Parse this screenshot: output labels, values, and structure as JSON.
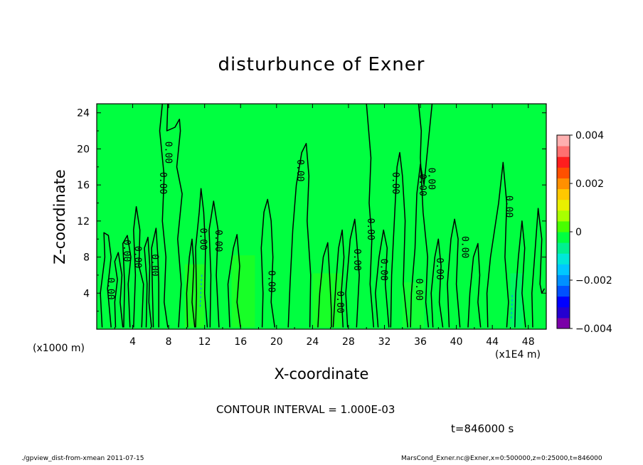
{
  "chart_data": {
    "type": "heatmap",
    "title": "disturbunce of Exner",
    "xlabel": "X-coordinate",
    "ylabel": "Z-coordinate",
    "x_unit_label": "(x1000 m)",
    "x_scale_label": "(x1E4 m)",
    "xlim": [
      0,
      50
    ],
    "ylim": [
      0,
      25
    ],
    "x_ticks": [
      4,
      8,
      12,
      16,
      20,
      24,
      28,
      32,
      36,
      40,
      44,
      48
    ],
    "y_ticks": [
      4,
      8,
      12,
      16,
      20,
      24
    ],
    "colorbar": {
      "range": [
        -0.004,
        0.004
      ],
      "tick_labels": [
        "0.004",
        "0.002",
        "0",
        "−0.002",
        "−0.004"
      ],
      "tick_values": [
        0.004,
        0.002,
        0,
        -0.002,
        -0.004
      ],
      "colors": [
        "#7a00a8",
        "#2400d0",
        "#0000ff",
        "#0050ff",
        "#0090ff",
        "#00c8ff",
        "#00e8d8",
        "#00f090",
        "#00ff40",
        "#48ff00",
        "#a8ff00",
        "#e8f000",
        "#ffc800",
        "#ff9000",
        "#ff5000",
        "#ff1e1e",
        "#ff7070",
        "#ffb0b0"
      ]
    },
    "background_value": 0,
    "contour_interval": "CONTOUR INTERVAL = 1.000E-03",
    "contour_labels": [
      {
        "x": 1.5,
        "y": 4.5,
        "text": "0.00"
      },
      {
        "x": 3.3,
        "y": 8.7,
        "text": "0.00"
      },
      {
        "x": 4.5,
        "y": 8.0,
        "text": "0.00"
      },
      {
        "x": 6.4,
        "y": 7.1,
        "text": "0.00"
      },
      {
        "x": 7.3,
        "y": 16.2,
        "text": "0.00"
      },
      {
        "x": 7.9,
        "y": 19.6,
        "text": "0.00"
      },
      {
        "x": 11.8,
        "y": 10.0,
        "text": "0.00"
      },
      {
        "x": 13.5,
        "y": 9.8,
        "text": "0.00"
      },
      {
        "x": 19.4,
        "y": 5.3,
        "text": "0.00"
      },
      {
        "x": 22.6,
        "y": 17.6,
        "text": "0.00"
      },
      {
        "x": 27.0,
        "y": 3.0,
        "text": "0.00"
      },
      {
        "x": 28.9,
        "y": 7.7,
        "text": "0.00"
      },
      {
        "x": 30.4,
        "y": 11.1,
        "text": "0.00"
      },
      {
        "x": 31.9,
        "y": 6.6,
        "text": "0.00"
      },
      {
        "x": 33.2,
        "y": 16.2,
        "text": "0.00"
      },
      {
        "x": 35.8,
        "y": 4.4,
        "text": "0.00"
      },
      {
        "x": 36.2,
        "y": 16.0,
        "text": "0.00"
      },
      {
        "x": 37.2,
        "y": 16.7,
        "text": "0.00"
      },
      {
        "x": 38.1,
        "y": 6.7,
        "text": "0.00"
      },
      {
        "x": 40.9,
        "y": 9.1,
        "text": "0.00"
      },
      {
        "x": 45.8,
        "y": 13.6,
        "text": "0.00"
      }
    ],
    "contour_lines": [
      {
        "style": "solid",
        "points": [
          [
            0.6,
            0.2
          ],
          [
            0.4,
            4
          ],
          [
            0.9,
            8
          ],
          [
            0.8,
            10.7
          ],
          [
            1.3,
            10.4
          ],
          [
            1.6,
            8
          ],
          [
            1.2,
            4.5
          ],
          [
            1.6,
            0.2
          ]
        ]
      },
      {
        "style": "solid",
        "points": [
          [
            2.1,
            0.2
          ],
          [
            2.0,
            3
          ],
          [
            2.3,
            5.5
          ],
          [
            2.0,
            7.5
          ],
          [
            2.4,
            8.5
          ],
          [
            2.8,
            6
          ],
          [
            2.6,
            3
          ],
          [
            2.9,
            0.2
          ]
        ]
      },
      {
        "style": "solid",
        "points": [
          [
            3.0,
            0.2
          ],
          [
            3.1,
            5
          ],
          [
            2.9,
            9.5
          ],
          [
            3.4,
            10.4
          ],
          [
            3.8,
            8
          ],
          [
            3.5,
            5
          ],
          [
            3.7,
            0.2
          ]
        ]
      },
      {
        "style": "solid",
        "points": [
          [
            4.1,
            0.2
          ],
          [
            4.3,
            6
          ],
          [
            4.1,
            11
          ],
          [
            4.4,
            13.6
          ],
          [
            4.8,
            11
          ],
          [
            4.7,
            7
          ],
          [
            5.2,
            5
          ],
          [
            5.0,
            0.2
          ]
        ]
      },
      {
        "style": "solid",
        "points": [
          [
            5.5,
            0.2
          ],
          [
            5.6,
            5
          ],
          [
            5.3,
            9
          ],
          [
            5.7,
            10.2
          ],
          [
            5.9,
            7
          ],
          [
            5.8,
            3
          ],
          [
            6.1,
            0.2
          ]
        ]
      },
      {
        "style": "solid",
        "points": [
          [
            6.3,
            0.2
          ],
          [
            6.2,
            4
          ],
          [
            6.1,
            9
          ],
          [
            6.6,
            11.2
          ],
          [
            6.8,
            8
          ],
          [
            6.9,
            5
          ],
          [
            6.9,
            0.2
          ]
        ]
      },
      {
        "style": "solid",
        "points": [
          [
            7.3,
            25
          ],
          [
            7.0,
            22
          ],
          [
            7.5,
            17
          ],
          [
            7.3,
            12
          ],
          [
            7.7,
            8
          ],
          [
            7.5,
            3
          ],
          [
            7.9,
            0.2
          ]
        ]
      },
      {
        "style": "solid",
        "points": [
          [
            7.9,
            25
          ],
          [
            7.8,
            22
          ],
          [
            8.7,
            22.4
          ],
          [
            9.2,
            23.3
          ],
          [
            9.3,
            22
          ],
          [
            8.9,
            18
          ],
          [
            9.5,
            15
          ],
          [
            9.0,
            10
          ],
          [
            9.4,
            5
          ],
          [
            9.1,
            0.2
          ]
        ]
      },
      {
        "style": "solid",
        "points": [
          [
            10.1,
            0.2
          ],
          [
            10.0,
            4
          ],
          [
            10.3,
            8
          ],
          [
            10.6,
            10
          ],
          [
            10.8,
            7
          ],
          [
            10.6,
            3
          ],
          [
            10.9,
            0.2
          ]
        ]
      },
      {
        "style": "solid",
        "points": [
          [
            11.0,
            0.2
          ],
          [
            11.1,
            4
          ],
          [
            11.0,
            9
          ],
          [
            11.4,
            13
          ],
          [
            11.6,
            15.6
          ],
          [
            11.9,
            13
          ],
          [
            12.1,
            9
          ],
          [
            12.0,
            4
          ],
          [
            12.3,
            0.2
          ]
        ]
      },
      {
        "style": "solid",
        "points": [
          [
            12.6,
            0.2
          ],
          [
            12.7,
            6
          ],
          [
            12.5,
            11
          ],
          [
            13.0,
            14.2
          ],
          [
            13.5,
            11
          ],
          [
            13.3,
            6
          ],
          [
            13.6,
            0.2
          ]
        ]
      },
      {
        "style": "solid",
        "points": [
          [
            14.8,
            0.2
          ],
          [
            14.6,
            5
          ],
          [
            15.2,
            9
          ],
          [
            15.6,
            10.5
          ],
          [
            15.9,
            7
          ],
          [
            15.6,
            3
          ],
          [
            16.0,
            0.2
          ]
        ]
      },
      {
        "style": "solid",
        "points": [
          [
            18.4,
            0.2
          ],
          [
            18.5,
            4
          ],
          [
            18.3,
            9
          ],
          [
            18.6,
            13
          ],
          [
            19.0,
            14.4
          ],
          [
            19.4,
            12
          ],
          [
            19.6,
            8
          ],
          [
            19.4,
            3
          ],
          [
            19.8,
            0.2
          ]
        ]
      },
      {
        "style": "solid",
        "points": [
          [
            21.3,
            0.2
          ],
          [
            21.5,
            5
          ],
          [
            21.8,
            11
          ],
          [
            22.2,
            16
          ],
          [
            22.8,
            19.6
          ],
          [
            23.3,
            20.6
          ],
          [
            23.6,
            17
          ],
          [
            23.4,
            12
          ],
          [
            23.8,
            6
          ],
          [
            23.7,
            0.2
          ]
        ]
      },
      {
        "style": "solid",
        "points": [
          [
            24.6,
            0.2
          ],
          [
            24.8,
            4
          ],
          [
            25.2,
            8
          ],
          [
            25.7,
            9.6
          ],
          [
            25.9,
            6
          ],
          [
            26.1,
            2
          ],
          [
            26.1,
            0.2
          ]
        ]
      },
      {
        "style": "solid",
        "points": [
          [
            26.3,
            0.2
          ],
          [
            26.6,
            5
          ],
          [
            26.9,
            9
          ],
          [
            27.3,
            11
          ],
          [
            27.5,
            8
          ],
          [
            27.2,
            4
          ],
          [
            27.4,
            0.2
          ]
        ]
      },
      {
        "style": "solid",
        "points": [
          [
            27.9,
            0.2
          ],
          [
            27.7,
            4
          ],
          [
            28.2,
            10
          ],
          [
            28.7,
            12.2
          ],
          [
            28.9,
            10
          ],
          [
            29.2,
            6
          ],
          [
            28.9,
            0.2
          ]
        ]
      },
      {
        "style": "solid",
        "points": [
          [
            30.0,
            25
          ],
          [
            30.5,
            19
          ],
          [
            30.3,
            14
          ],
          [
            30.6,
            10
          ],
          [
            30.4,
            5
          ],
          [
            30.8,
            0.2
          ]
        ]
      },
      {
        "style": "solid",
        "points": [
          [
            31.3,
            0.2
          ],
          [
            31.0,
            4
          ],
          [
            31.4,
            8
          ],
          [
            31.9,
            11
          ],
          [
            32.3,
            9
          ],
          [
            32.1,
            5
          ],
          [
            32.5,
            0.2
          ]
        ]
      },
      {
        "style": "solid",
        "points": [
          [
            32.7,
            0.2
          ],
          [
            32.8,
            6
          ],
          [
            33.1,
            12
          ],
          [
            33.4,
            18
          ],
          [
            33.7,
            19.6
          ],
          [
            34.0,
            17
          ],
          [
            34.3,
            12
          ],
          [
            34.1,
            5
          ],
          [
            34.6,
            0.2
          ]
        ]
      },
      {
        "style": "solid",
        "points": [
          [
            34.9,
            0.2
          ],
          [
            35.0,
            4
          ],
          [
            35.4,
            9
          ],
          [
            35.6,
            15
          ],
          [
            36.0,
            18.3
          ],
          [
            36.4,
            16
          ],
          [
            36.8,
            20
          ],
          [
            37.0,
            22
          ],
          [
            37.3,
            25
          ]
        ]
      },
      {
        "style": "solid",
        "points": [
          [
            35.8,
            25
          ],
          [
            36.1,
            22
          ],
          [
            36.0,
            19
          ],
          [
            36.3,
            13
          ],
          [
            36.8,
            8
          ],
          [
            36.6,
            3
          ],
          [
            36.9,
            0.2
          ]
        ]
      },
      {
        "style": "solid",
        "points": [
          [
            37.4,
            0.2
          ],
          [
            37.2,
            4
          ],
          [
            37.6,
            8
          ],
          [
            38.0,
            10
          ],
          [
            38.3,
            7
          ],
          [
            38.1,
            3
          ],
          [
            38.5,
            0.2
          ]
        ]
      },
      {
        "style": "solid",
        "points": [
          [
            39.2,
            0.2
          ],
          [
            39.0,
            5
          ],
          [
            39.4,
            10
          ],
          [
            39.8,
            12.2
          ],
          [
            40.2,
            10
          ],
          [
            40.0,
            5
          ],
          [
            40.4,
            0.2
          ]
        ]
      },
      {
        "style": "solid",
        "points": [
          [
            41.3,
            0.2
          ],
          [
            41.5,
            4
          ],
          [
            41.9,
            8
          ],
          [
            42.4,
            9.5
          ],
          [
            42.6,
            6
          ],
          [
            42.4,
            3
          ],
          [
            42.7,
            0.2
          ]
        ]
      },
      {
        "style": "solid",
        "points": [
          [
            43.5,
            0.2
          ],
          [
            43.4,
            4
          ],
          [
            43.8,
            8
          ],
          [
            44.4,
            12
          ],
          [
            44.7,
            14
          ],
          [
            45.2,
            18.5
          ],
          [
            45.6,
            14
          ],
          [
            45.4,
            8
          ],
          [
            45.8,
            3
          ],
          [
            45.6,
            0.2
          ]
        ]
      },
      {
        "style": "solid",
        "points": [
          [
            46.5,
            0.2
          ],
          [
            46.6,
            4
          ],
          [
            46.9,
            8
          ],
          [
            47.3,
            12
          ],
          [
            47.6,
            9
          ],
          [
            47.3,
            4
          ],
          [
            47.7,
            0.2
          ]
        ]
      },
      {
        "style": "solid",
        "points": [
          [
            48.5,
            0.2
          ],
          [
            48.4,
            4
          ],
          [
            48.7,
            8
          ],
          [
            49.1,
            13.4
          ],
          [
            49.5,
            10
          ],
          [
            49.3,
            5
          ],
          [
            49.5,
            4
          ],
          [
            49.8,
            4.5
          ]
        ]
      },
      {
        "style": "dashed",
        "points": [
          [
            11.5,
            2.5
          ],
          [
            11.6,
            4.5
          ],
          [
            11.7,
            6.2
          ]
        ]
      },
      {
        "style": "dashed",
        "points": [
          [
            46.1,
            1.2
          ],
          [
            46.2,
            3
          ],
          [
            46.2,
            4
          ]
        ]
      }
    ]
  },
  "annotations": {
    "time_label": "t=846000 s",
    "footer_left": "./gpview_dist-from-xmean  2011-07-15",
    "footer_right": "MarsCond_Exner.nc@Exner,x=0:500000,z=0:25000,t=846000"
  }
}
